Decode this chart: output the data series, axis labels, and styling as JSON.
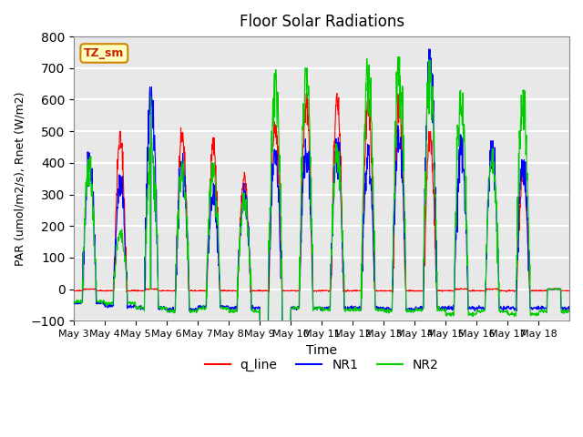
{
  "title": "Floor Solar Radiations",
  "xlabel": "Time",
  "ylabel": "PAR (umol/m2/s), Rnet (W/m2)",
  "ylim": [
    -100,
    800
  ],
  "yticks": [
    -100,
    0,
    100,
    200,
    300,
    400,
    500,
    600,
    700,
    800
  ],
  "xtick_labels": [
    "May 3",
    "May 4",
    "May 5",
    "May 6",
    "May 7",
    "May 8",
    "May 9",
    "May 10",
    "May 11",
    "May 12",
    "May 13",
    "May 14",
    "May 15",
    "May 16",
    "May 17",
    "May 18"
  ],
  "legend_labels": [
    "q_line",
    "NR1",
    "NR2"
  ],
  "legend_colors": [
    "#ff0000",
    "#0000ff",
    "#00cc00"
  ],
  "line_colors": {
    "q_line": "#ff0000",
    "NR1": "#0000ff",
    "NR2": "#00cc00"
  },
  "annotation_text": "TZ_sm",
  "annotation_bg": "#ffffc0",
  "annotation_border": "#cc8800",
  "background_color": "#e8e8e8",
  "grid_color": "#ffffff",
  "n_days": 16,
  "points_per_day": 96
}
